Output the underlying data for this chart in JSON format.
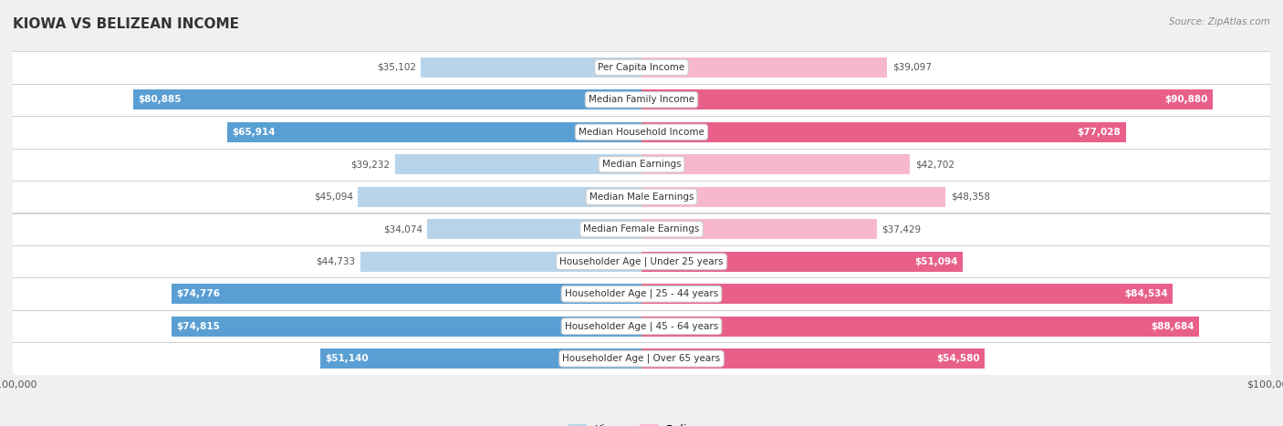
{
  "title": "KIOWA VS BELIZEAN INCOME",
  "source": "Source: ZipAtlas.com",
  "categories": [
    "Per Capita Income",
    "Median Family Income",
    "Median Household Income",
    "Median Earnings",
    "Median Male Earnings",
    "Median Female Earnings",
    "Householder Age | Under 25 years",
    "Householder Age | 25 - 44 years",
    "Householder Age | 45 - 64 years",
    "Householder Age | Over 65 years"
  ],
  "kiowa_values": [
    35102,
    80885,
    65914,
    39232,
    45094,
    34074,
    44733,
    74776,
    74815,
    51140
  ],
  "belizean_values": [
    39097,
    90880,
    77028,
    42702,
    48358,
    37429,
    51094,
    84534,
    88684,
    54580
  ],
  "kiowa_labels": [
    "$35,102",
    "$80,885",
    "$65,914",
    "$39,232",
    "$45,094",
    "$34,074",
    "$44,733",
    "$74,776",
    "$74,815",
    "$51,140"
  ],
  "belizean_labels": [
    "$39,097",
    "$90,880",
    "$77,028",
    "$42,702",
    "$48,358",
    "$37,429",
    "$51,094",
    "$84,534",
    "$88,684",
    "$54,580"
  ],
  "max_value": 100000,
  "kiowa_color_light": "#b8d4ea",
  "kiowa_color_dark": "#5a9fd4",
  "belizean_color_light": "#f7b8cc",
  "belizean_color_dark": "#e8608a",
  "background_color": "#f0f0f0",
  "row_color": "#ffffff",
  "inside_label_color": "#ffffff",
  "outside_label_color": "#555555",
  "inside_threshold": 50000,
  "figsize": [
    14.06,
    4.67
  ],
  "dpi": 100
}
